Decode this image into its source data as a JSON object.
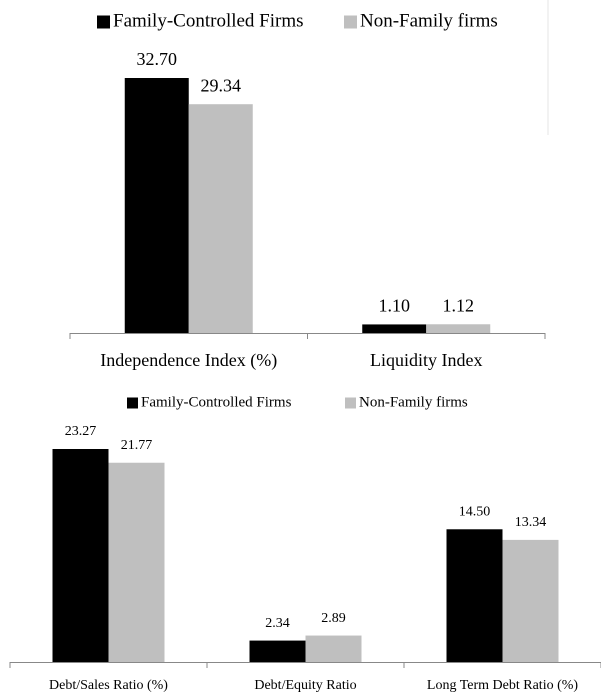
{
  "chart_data": [
    {
      "type": "bar",
      "categories": [
        "Independence Index (%)",
        "Liquidity Index"
      ],
      "series": [
        {
          "name": "Family-Controlled Firms",
          "color": "#000000",
          "values": [
            32.7,
            1.1
          ],
          "value_labels": [
            "32.70",
            "1.10"
          ]
        },
        {
          "name": "Non-Family firms",
          "color": "#bfbfbf",
          "values": [
            29.34,
            1.12
          ],
          "value_labels": [
            "29.34",
            "1.12"
          ]
        }
      ],
      "legend": "top"
    },
    {
      "type": "bar",
      "categories": [
        "Debt/Sales Ratio (%)",
        "Debt/Equity Ratio",
        "Long Term Debt Ratio (%)"
      ],
      "series": [
        {
          "name": "Family-Controlled Firms",
          "color": "#000000",
          "values": [
            23.27,
            2.34,
            14.5
          ],
          "value_labels": [
            "23.27",
            "2.34",
            "14.50"
          ]
        },
        {
          "name": "Non-Family firms",
          "color": "#bfbfbf",
          "values": [
            21.77,
            2.89,
            13.34
          ],
          "value_labels": [
            "21.77",
            "2.89",
            "13.34"
          ]
        }
      ],
      "legend": "top"
    }
  ]
}
